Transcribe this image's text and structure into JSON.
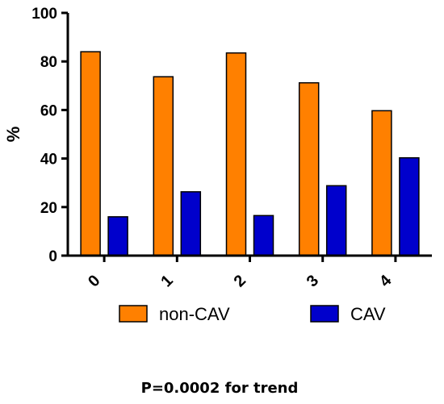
{
  "chart_data": {
    "type": "bar",
    "categories": [
      "0",
      "1",
      "2",
      "3",
      "4"
    ],
    "series": [
      {
        "name": "non-CAV",
        "values": [
          84,
          73.7,
          83.5,
          71.2,
          59.7
        ],
        "color": "#ff8000"
      },
      {
        "name": "CAV",
        "values": [
          16,
          26.3,
          16.5,
          28.8,
          40.3
        ],
        "color": "#0000cc"
      }
    ],
    "ylabel": "%",
    "xlabel": "",
    "ylim": [
      0,
      100
    ],
    "yticks": [
      "0",
      "20",
      "40",
      "60",
      "80",
      "100"
    ],
    "grid": false,
    "legend": "bottom",
    "annotation": "P=0.0002 for trend"
  }
}
